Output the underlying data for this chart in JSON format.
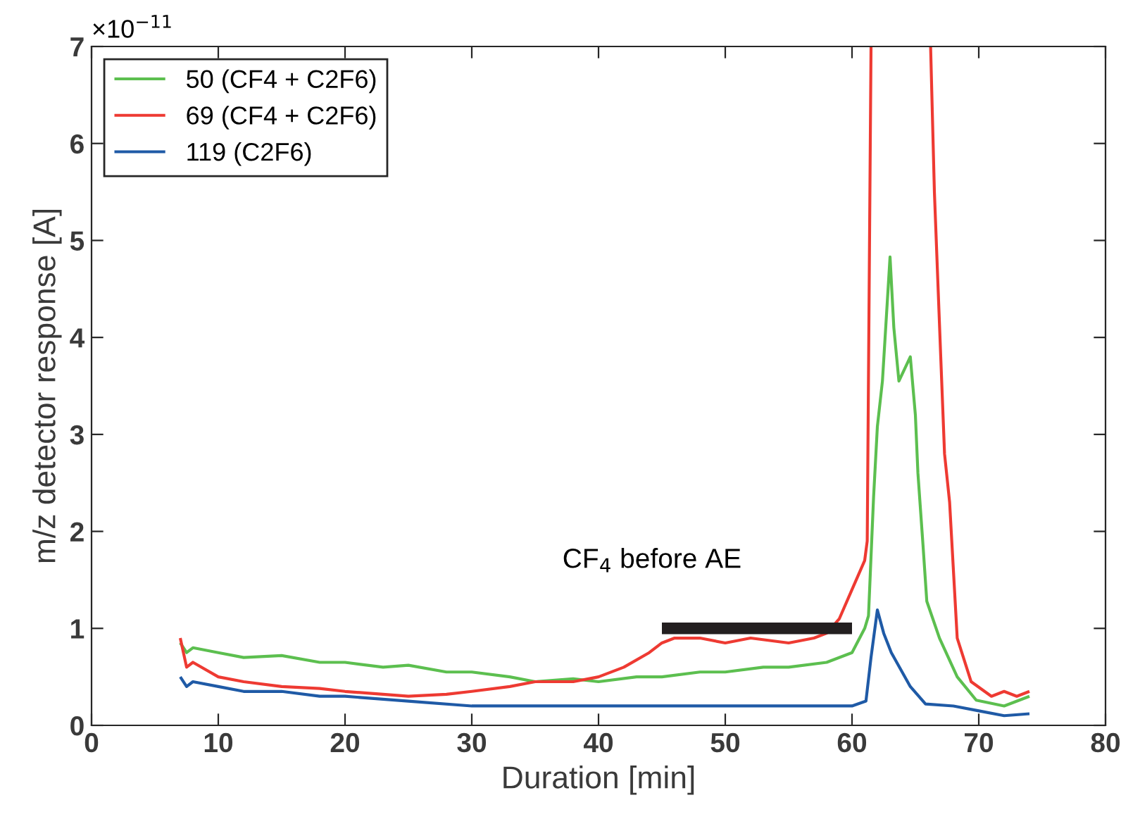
{
  "chart_data": {
    "type": "line",
    "xlabel": "Duration [min]",
    "ylabel": "m/z detector response [A]",
    "xlim": [
      0,
      80
    ],
    "xticks": [
      0,
      10,
      20,
      30,
      40,
      50,
      60,
      70,
      80
    ],
    "ylim": [
      0,
      7
    ],
    "yticks": [
      0,
      1,
      2,
      3,
      4,
      5,
      6,
      7
    ],
    "grid": false,
    "legend": "top left",
    "line_style": "solid",
    "marker": "none",
    "annotations": [
      "×10$^{−11}$",
      "CF$_{4}$ before AE"
    ],
    "series": [
      {
        "name": "50 (CF4 + C2F6)",
        "color": "#5cbf4f",
        "x": [
          7,
          7.5,
          8,
          10,
          12,
          15,
          18,
          20,
          23,
          25,
          28,
          30,
          33,
          35,
          38,
          40,
          43,
          45,
          48,
          50,
          53,
          55,
          58,
          60,
          61,
          61.3,
          61.7,
          62.0,
          62.4,
          63.0,
          63.3,
          63.7,
          64.6,
          65.0,
          65.2,
          65.6,
          65.9,
          66.9,
          68.3,
          69.8,
          72,
          74
        ],
        "values": [
          0.85,
          0.75,
          0.8,
          0.75,
          0.7,
          0.72,
          0.65,
          0.65,
          0.6,
          0.62,
          0.55,
          0.55,
          0.5,
          0.45,
          0.48,
          0.45,
          0.5,
          0.5,
          0.55,
          0.55,
          0.6,
          0.6,
          0.65,
          0.75,
          1.0,
          1.13,
          2.35,
          3.08,
          3.55,
          4.83,
          4.1,
          3.55,
          3.8,
          3.2,
          2.6,
          1.86,
          1.28,
          0.9,
          0.5,
          0.26,
          0.2,
          0.3
        ]
      },
      {
        "name": "69 (CF4 + C2F6)",
        "color": "#ee3a32",
        "x": [
          7,
          7.5,
          8,
          10,
          12,
          15,
          18,
          20,
          23,
          25,
          28,
          30,
          33,
          35,
          38,
          40,
          42,
          44,
          45,
          46,
          48,
          50,
          52,
          55,
          57,
          58,
          59,
          60,
          61,
          61.2,
          61.5,
          63,
          66.2,
          66.5,
          67.0,
          67.3,
          67.7,
          68.3,
          69.4,
          71,
          72,
          73,
          74
        ],
        "values": [
          0.9,
          0.6,
          0.65,
          0.5,
          0.45,
          0.4,
          0.38,
          0.35,
          0.32,
          0.3,
          0.32,
          0.35,
          0.4,
          0.45,
          0.45,
          0.5,
          0.6,
          0.75,
          0.85,
          0.9,
          0.9,
          0.85,
          0.9,
          0.85,
          0.9,
          0.95,
          1.1,
          1.4,
          1.7,
          1.9,
          7,
          null,
          7,
          5.5,
          3.8,
          2.8,
          2.3,
          0.9,
          0.45,
          0.3,
          0.35,
          0.3,
          0.35
        ]
      },
      {
        "name": "119 (C2F6)",
        "color": "#1f5aa6",
        "x": [
          7,
          7.5,
          8,
          10,
          12,
          15,
          18,
          20,
          25,
          30,
          35,
          40,
          45,
          50,
          55,
          60,
          61.1,
          61.5,
          62.0,
          62.5,
          63.1,
          64.6,
          65.8,
          68,
          70,
          72,
          74
        ],
        "values": [
          0.5,
          0.4,
          0.45,
          0.4,
          0.35,
          0.35,
          0.3,
          0.3,
          0.25,
          0.2,
          0.2,
          0.2,
          0.2,
          0.2,
          0.2,
          0.2,
          0.25,
          0.7,
          1.19,
          0.95,
          0.75,
          0.4,
          0.22,
          0.2,
          0.15,
          0.1,
          0.12
        ]
      },
      {
        "type": "line",
        "color": "#231f20",
        "x": [
          45,
          60
        ],
        "values": [
          1,
          1
        ]
      }
    ]
  }
}
